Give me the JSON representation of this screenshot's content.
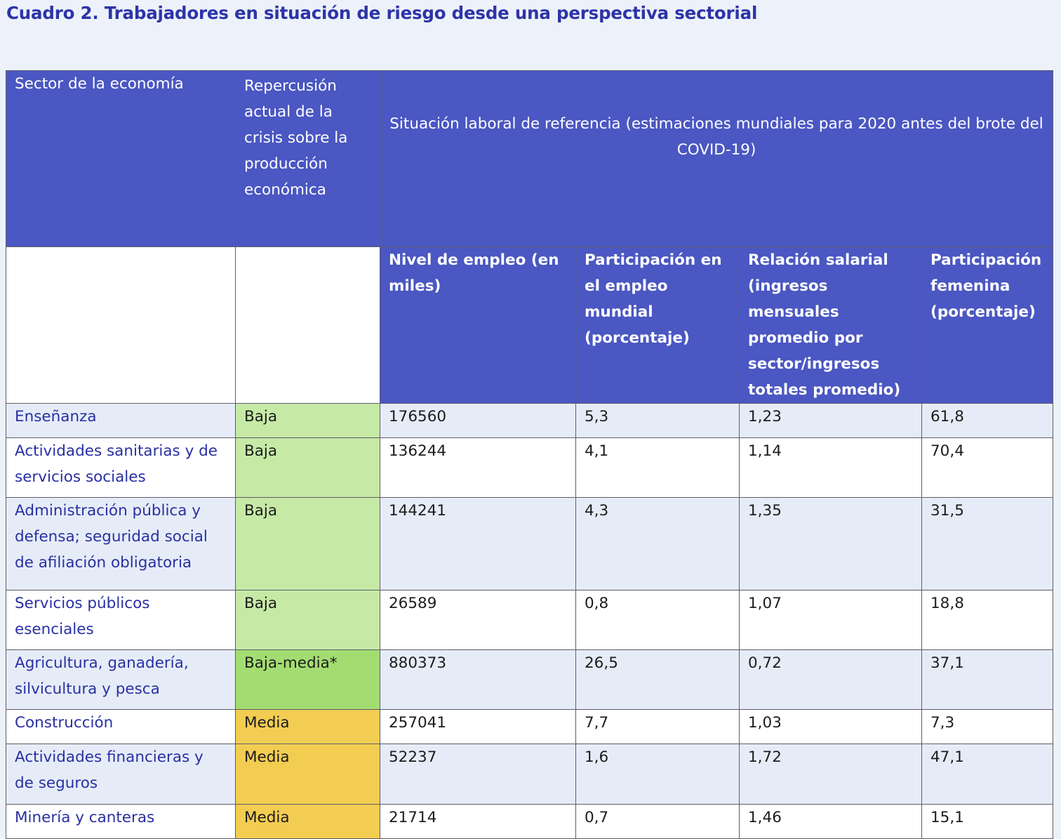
{
  "title": "Cuadro 2. Trabajadores en situación de riesgo desde una perspectiva sectorial",
  "header": {
    "sector": "Sector de la economía",
    "repercussion": "Repercusión actual de la crisis sobre la producción económica",
    "situacion": "Situación laboral de referencia (estimaciones mundiales para 2020 antes del brote del COVID-19)",
    "nivel": "Nivel de empleo (en miles)",
    "participacion": "Participación en el empleo mundial (porcentaje)",
    "relacion": "Relación salarial (ingresos mensuales promedio por sector/ingresos totales promedio)",
    "femenina": "Participación femenina (porcentaje)"
  },
  "colors": {
    "header_bg": "#4b57c2",
    "title": "#2d34a8",
    "impact_baja": "#c6eaa6",
    "impact_baja_media": "#a3dd71",
    "impact_media": "#f3cd51"
  },
  "rows": [
    {
      "sector": "Enseñanza",
      "impact": "Baja",
      "nivel": "176560",
      "participacion": "5,3",
      "relacion": "1,23",
      "femenina": "61,8"
    },
    {
      "sector": "Actividades sanitarias y de servicios sociales",
      "impact": "Baja",
      "nivel": "136244",
      "participacion": "4,1",
      "relacion": "1,14",
      "femenina": "70,4"
    },
    {
      "sector": "Administración pública y defensa; seguridad social de afiliación obligatoria",
      "impact": "Baja",
      "nivel": "144241",
      "participacion": "4,3",
      "relacion": "1,35",
      "femenina": "31,5"
    },
    {
      "sector": "Servicios públicos esenciales",
      "impact": "Baja",
      "nivel": "26589",
      "participacion": "0,8",
      "relacion": "1,07",
      "femenina": "18,8"
    },
    {
      "sector": "Agricultura, ganadería, silvicultura y pesca",
      "impact": "Baja-media*",
      "nivel": "880373",
      "participacion": "26,5",
      "relacion": "0,72",
      "femenina": "37,1"
    },
    {
      "sector": "Construcción",
      "impact": "Media",
      "nivel": "257041",
      "participacion": "7,7",
      "relacion": "1,03",
      "femenina": "7,3"
    },
    {
      "sector": "Actividades financieras y de seguros",
      "impact": "Media",
      "nivel": "52237",
      "participacion": "1,6",
      "relacion": "1,72",
      "femenina": "47,1"
    },
    {
      "sector": "Minería y canteras",
      "impact": "Media",
      "nivel": "21714",
      "participacion": "0,7",
      "relacion": "1,46",
      "femenina": "15,1"
    }
  ]
}
